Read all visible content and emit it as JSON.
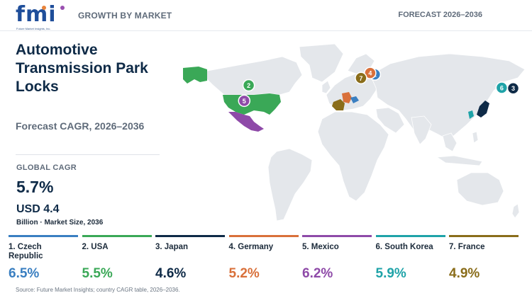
{
  "header": {
    "logo_text": "fmi",
    "logo_subtext": "Future Market Insights, Inc.",
    "left_label": "GROWTH BY MARKET",
    "right_label": "FORECAST 2026–2036"
  },
  "summary": {
    "title": "Automotive Transmission Park Locks",
    "subtitle": "Forecast CAGR, 2026–2036",
    "cagr_label": "GLOBAL CAGR",
    "cagr_value": "5.7%",
    "market_size": "USD 4.4",
    "market_size_note": "Billion · Market Size, 2036"
  },
  "map": {
    "markers": [
      {
        "rank": "1",
        "country": "Czech Republic",
        "color": "#3a7fc1",
        "lon": 14.5,
        "lat": 49.8
      },
      {
        "rank": "2",
        "country": "USA",
        "color": "#3aa857",
        "lon": -98,
        "lat": 39
      },
      {
        "rank": "3",
        "country": "Japan",
        "color": "#0e2a47",
        "lon": 138,
        "lat": 36
      },
      {
        "rank": "4",
        "country": "Germany",
        "color": "#d9703a",
        "lon": 10.4,
        "lat": 51.2
      },
      {
        "rank": "5",
        "country": "Mexico",
        "color": "#8e4aa8",
        "lon": -102,
        "lat": 23.6
      },
      {
        "rank": "6",
        "country": "South Korea",
        "color": "#1fa3a8",
        "lon": 127.8,
        "lat": 36.5
      },
      {
        "rank": "7",
        "country": "France",
        "color": "#8a6d1a",
        "lon": 2.2,
        "lat": 46.2
      }
    ]
  },
  "countries": [
    {
      "label": "1. Czech Republic",
      "value": "6.5%",
      "color": "#3a7fc1"
    },
    {
      "label": "2. USA",
      "value": "5.5%",
      "color": "#3aa857"
    },
    {
      "label": "3. Japan",
      "value": "4.6%",
      "color": "#0e2a47"
    },
    {
      "label": "4. Germany",
      "value": "5.2%",
      "color": "#d9703a"
    },
    {
      "label": "5. Mexico",
      "value": "6.2%",
      "color": "#8e4aa8"
    },
    {
      "label": "6. South Korea",
      "value": "5.9%",
      "color": "#1fa3a8"
    },
    {
      "label": "7. France",
      "value": "4.9%",
      "color": "#8a6d1a"
    }
  ],
  "footer": {
    "source": "Source: Future Market Insights; country CAGR table, 2026–2036."
  }
}
